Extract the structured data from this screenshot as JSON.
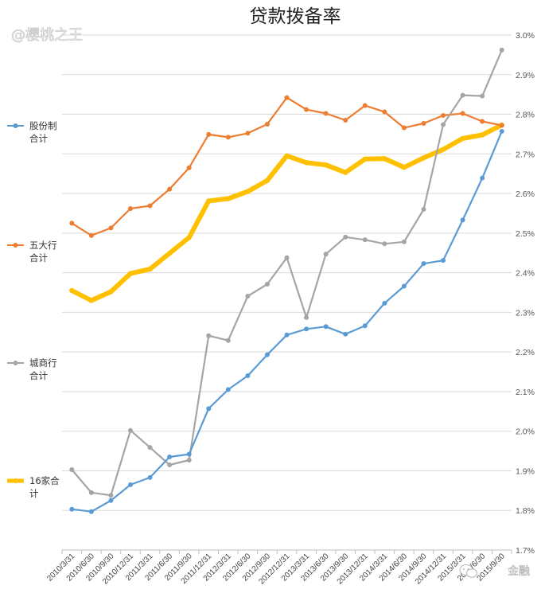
{
  "chart_data": {
    "type": "line",
    "title": "贷款拨备率",
    "ylim": [
      1.7,
      3.0
    ],
    "yticks": [
      "1.7%",
      "1.8%",
      "1.9%",
      "2.0%",
      "2.1%",
      "2.2%",
      "2.3%",
      "2.4%",
      "2.5%",
      "2.6%",
      "2.7%",
      "2.8%",
      "2.9%",
      "3.0%"
    ],
    "x": [
      "2010/3/31",
      "2010/6/30",
      "2010/9/30",
      "2010/12/31",
      "2011/3/31",
      "2011/6/30",
      "2011/9/30",
      "2011/12/31",
      "2012/3/31",
      "2012/6/30",
      "2012/9/30",
      "2012/12/31",
      "2013/3/31",
      "2013/6/30",
      "2013/9/30",
      "2013/12/31",
      "2014/3/31",
      "2014/6/30",
      "2014/9/30",
      "2014/12/31",
      "2015/3/31",
      "2015/6/30",
      "2015/9/30"
    ],
    "series": [
      {
        "name": "股份制合计",
        "legend_lines": [
          "股份制",
          "合计"
        ],
        "color": "#5b9bd5",
        "values": [
          1.803,
          1.797,
          1.825,
          1.865,
          1.883,
          1.935,
          1.942,
          2.057,
          2.105,
          2.14,
          2.193,
          2.243,
          2.258,
          2.264,
          2.245,
          2.266,
          2.323,
          2.366,
          2.423,
          2.431,
          2.533,
          2.639,
          2.757
        ]
      },
      {
        "name": "五大行合计",
        "legend_lines": [
          "五大行",
          "合计"
        ],
        "color": "#ed7d31",
        "values": [
          2.525,
          2.494,
          2.513,
          2.562,
          2.569,
          2.611,
          2.665,
          2.749,
          2.742,
          2.752,
          2.775,
          2.842,
          2.812,
          2.802,
          2.785,
          2.822,
          2.806,
          2.766,
          2.777,
          2.797,
          2.802,
          2.782,
          2.772
        ]
      },
      {
        "name": "城商行合计",
        "legend_lines": [
          "城商行",
          "合计"
        ],
        "color": "#a5a5a5",
        "values": [
          1.903,
          1.845,
          1.838,
          2.002,
          1.959,
          1.915,
          1.927,
          2.241,
          2.229,
          2.341,
          2.371,
          2.438,
          2.287,
          2.447,
          2.49,
          2.483,
          2.473,
          2.478,
          2.56,
          2.774,
          2.848,
          2.846,
          2.962
        ]
      },
      {
        "name": "16家合计",
        "legend_lines": [
          "16家合",
          "计"
        ],
        "color": "#ffc000",
        "values": [
          2.355,
          2.33,
          2.352,
          2.398,
          2.409,
          2.449,
          2.489,
          2.581,
          2.587,
          2.605,
          2.633,
          2.695,
          2.678,
          2.672,
          2.653,
          2.687,
          2.688,
          2.666,
          2.69,
          2.711,
          2.739,
          2.748,
          2.773
        ]
      }
    ]
  },
  "watermark": {
    "top_left": "@樱桃之王",
    "bottom_right": "金融"
  }
}
